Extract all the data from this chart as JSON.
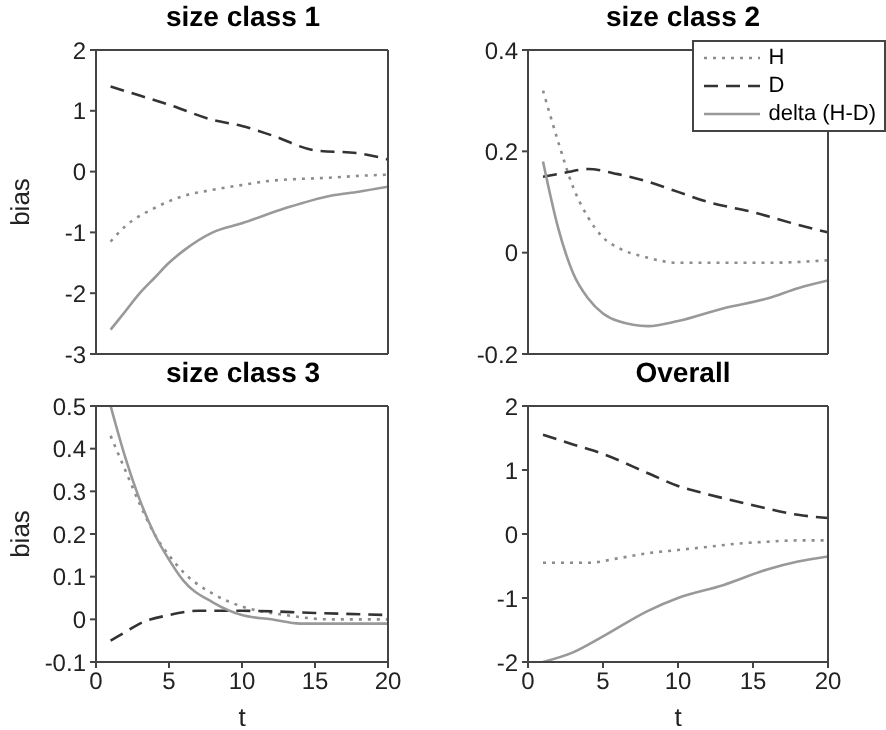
{
  "chart_data": [
    {
      "type": "line",
      "title": "size class 1",
      "ylabel": "bias",
      "xlim": [
        0,
        20
      ],
      "ylim": [
        -3,
        2
      ],
      "xticks": [
        0,
        5,
        10,
        15,
        20
      ],
      "yticks": [
        -3,
        -2,
        -1,
        0,
        1,
        2
      ],
      "tick_labels": "y",
      "series": [
        {
          "color": "#8c8c8c",
          "line_style": "dotted",
          "x": [
            1,
            2,
            4,
            6,
            8,
            10,
            12,
            14,
            16,
            18,
            20
          ],
          "values": [
            -1.15,
            -0.9,
            -0.6,
            -0.4,
            -0.3,
            -0.22,
            -0.15,
            -0.12,
            -0.1,
            -0.07,
            -0.05
          ]
        },
        {
          "color": "#333333",
          "line_style": "dashed",
          "x": [
            1,
            3,
            5,
            8,
            10,
            12,
            15,
            18,
            20
          ],
          "values": [
            1.4,
            1.25,
            1.1,
            0.85,
            0.75,
            0.6,
            0.35,
            0.3,
            0.2
          ]
        },
        {
          "color": "#999999",
          "line_style": "solid",
          "x": [
            1,
            2,
            3,
            4,
            5,
            6,
            8,
            10,
            13,
            16,
            18,
            20
          ],
          "values": [
            -2.6,
            -2.3,
            -2.0,
            -1.75,
            -1.5,
            -1.3,
            -1.0,
            -0.85,
            -0.6,
            -0.4,
            -0.33,
            -0.25
          ]
        }
      ]
    },
    {
      "type": "line",
      "title": "size class 2",
      "xlim": [
        0,
        20
      ],
      "ylim": [
        -0.2,
        0.4
      ],
      "xticks": [
        0,
        5,
        10,
        15,
        20
      ],
      "yticks": [
        -0.2,
        0,
        0.2,
        0.4
      ],
      "tick_labels": "y",
      "legend": "top right",
      "series": [
        {
          "name": "H",
          "color": "#8c8c8c",
          "line_style": "dotted",
          "x": [
            1,
            2,
            3,
            4,
            5,
            6,
            8,
            10,
            13,
            16,
            20
          ],
          "values": [
            0.32,
            0.22,
            0.13,
            0.07,
            0.03,
            0.01,
            -0.01,
            -0.02,
            -0.02,
            -0.02,
            -0.015
          ]
        },
        {
          "name": "D",
          "color": "#333333",
          "line_style": "dashed",
          "x": [
            1,
            2,
            4,
            6,
            8,
            10,
            12,
            15,
            18,
            20
          ],
          "values": [
            0.15,
            0.155,
            0.165,
            0.155,
            0.14,
            0.12,
            0.1,
            0.08,
            0.055,
            0.04
          ]
        },
        {
          "name": "delta (H-D)",
          "color": "#999999",
          "line_style": "solid",
          "x": [
            1,
            2,
            3,
            4,
            5,
            6,
            8,
            10,
            13,
            16,
            18,
            20
          ],
          "values": [
            0.18,
            0.05,
            -0.04,
            -0.09,
            -0.12,
            -0.135,
            -0.145,
            -0.135,
            -0.11,
            -0.09,
            -0.07,
            -0.055
          ]
        }
      ]
    },
    {
      "type": "line",
      "title": "size class 3",
      "xlabel": "t",
      "ylabel": "bias",
      "xlim": [
        0,
        20
      ],
      "ylim": [
        -0.1,
        0.5
      ],
      "xticks": [
        0,
        5,
        10,
        15,
        20
      ],
      "yticks": [
        -0.1,
        0,
        0.1,
        0.2,
        0.3,
        0.4,
        0.5
      ],
      "series": [
        {
          "color": "#8c8c8c",
          "line_style": "dotted",
          "x": [
            1,
            2,
            3,
            4,
            5,
            6,
            8,
            10,
            13,
            16,
            20
          ],
          "values": [
            0.43,
            0.35,
            0.27,
            0.2,
            0.15,
            0.11,
            0.06,
            0.03,
            0.01,
            0.0,
            0.0
          ]
        },
        {
          "color": "#333333",
          "line_style": "dashed",
          "x": [
            1,
            2,
            3,
            5,
            7,
            10,
            15,
            20
          ],
          "values": [
            -0.05,
            -0.03,
            -0.01,
            0.01,
            0.02,
            0.02,
            0.015,
            0.01
          ]
        },
        {
          "color": "#999999",
          "line_style": "solid",
          "x": [
            1,
            2,
            3,
            4,
            5,
            6,
            8,
            10,
            12,
            14,
            17,
            20
          ],
          "values": [
            0.5,
            0.38,
            0.28,
            0.2,
            0.14,
            0.09,
            0.04,
            0.01,
            0.0,
            -0.01,
            -0.01,
            -0.01
          ]
        }
      ]
    },
    {
      "type": "line",
      "title": "Overall",
      "xlabel": "t",
      "xlim": [
        0,
        20
      ],
      "ylim": [
        -2,
        2
      ],
      "xticks": [
        0,
        5,
        10,
        15,
        20
      ],
      "yticks": [
        -2,
        -1,
        0,
        1,
        2
      ],
      "series": [
        {
          "color": "#8c8c8c",
          "line_style": "dotted",
          "x": [
            1,
            4,
            6,
            8,
            10,
            12,
            14,
            16,
            18,
            20
          ],
          "values": [
            -0.45,
            -0.45,
            -0.38,
            -0.3,
            -0.25,
            -0.2,
            -0.15,
            -0.12,
            -0.1,
            -0.1
          ]
        },
        {
          "color": "#333333",
          "line_style": "dashed",
          "x": [
            1,
            3,
            5,
            8,
            10,
            12,
            15,
            18,
            20
          ],
          "values": [
            1.55,
            1.4,
            1.25,
            0.95,
            0.75,
            0.62,
            0.45,
            0.3,
            0.25
          ]
        },
        {
          "color": "#999999",
          "line_style": "solid",
          "x": [
            1,
            3,
            5,
            8,
            10,
            13,
            16,
            18,
            20
          ],
          "values": [
            -2.0,
            -1.85,
            -1.6,
            -1.2,
            -1.0,
            -0.8,
            -0.55,
            -0.43,
            -0.35
          ]
        }
      ]
    }
  ]
}
